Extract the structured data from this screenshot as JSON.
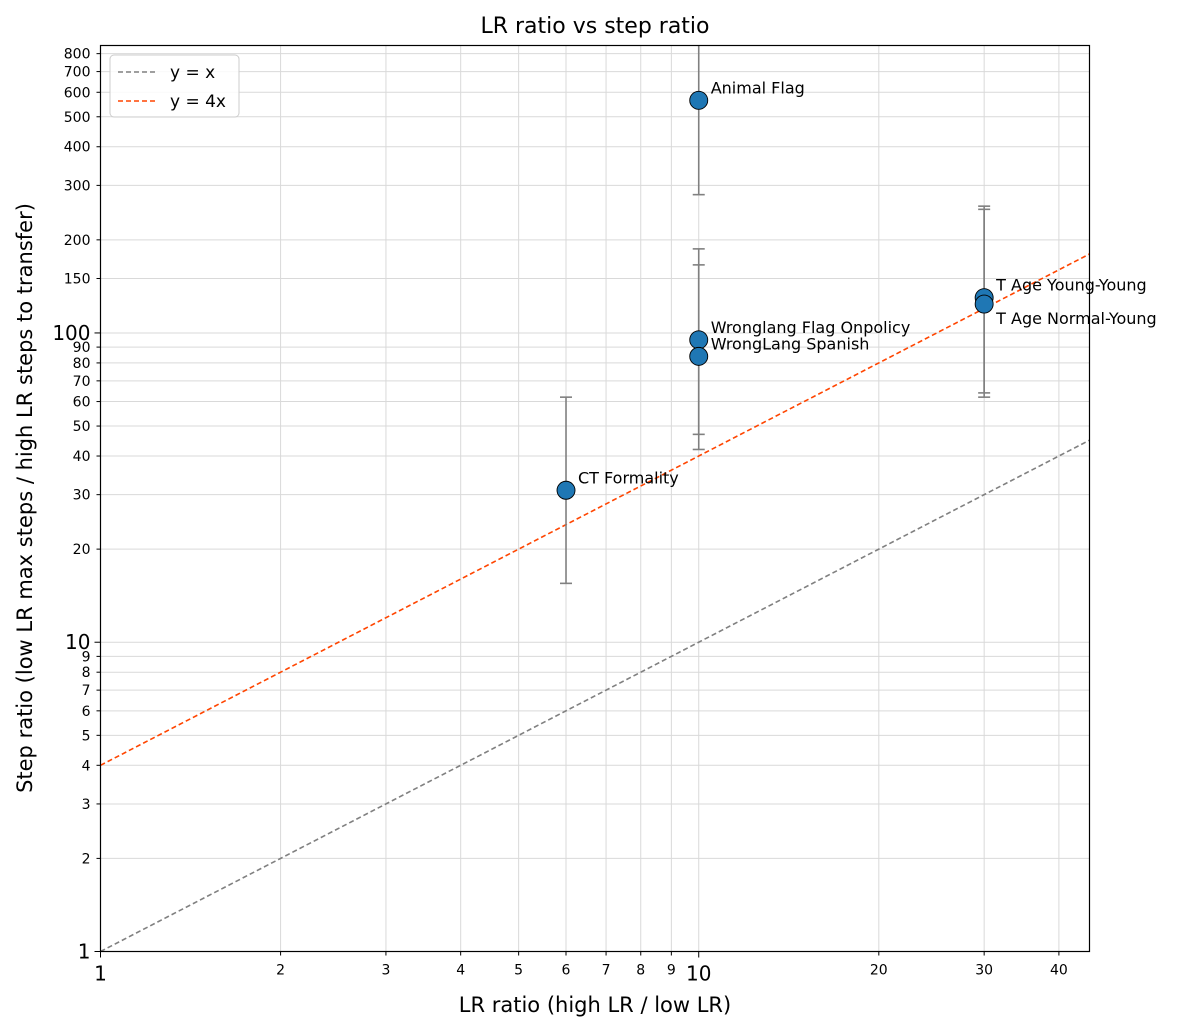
{
  "chart_data": {
    "type": "scatter",
    "title": "LR ratio vs step ratio",
    "xlabel": "LR ratio (high LR / low LR)",
    "ylabel": "Step ratio (low LR max steps / high LR steps to transfer)",
    "xscale": "log",
    "yscale": "log",
    "xlim": [
      1,
      45
    ],
    "ylim": [
      1,
      850
    ],
    "grid": true,
    "legend_position": "top-left",
    "x_ticks": [
      {
        "v": 1,
        "label": "1",
        "major": true
      },
      {
        "v": 2,
        "label": "2",
        "major": false
      },
      {
        "v": 3,
        "label": "3",
        "major": false
      },
      {
        "v": 4,
        "label": "4",
        "major": false
      },
      {
        "v": 5,
        "label": "5",
        "major": false
      },
      {
        "v": 6,
        "label": "6",
        "major": false
      },
      {
        "v": 7,
        "label": "7",
        "major": false
      },
      {
        "v": 8,
        "label": "8",
        "major": false
      },
      {
        "v": 9,
        "label": "9",
        "major": false
      },
      {
        "v": 10,
        "label": "10",
        "major": true
      },
      {
        "v": 20,
        "label": "20",
        "major": false
      },
      {
        "v": 30,
        "label": "30",
        "major": false
      },
      {
        "v": 40,
        "label": "40",
        "major": false
      }
    ],
    "y_ticks": [
      {
        "v": 1,
        "label": "1",
        "major": true
      },
      {
        "v": 2,
        "label": "2",
        "major": false
      },
      {
        "v": 3,
        "label": "3",
        "major": false
      },
      {
        "v": 4,
        "label": "4",
        "major": false
      },
      {
        "v": 5,
        "label": "5",
        "major": false
      },
      {
        "v": 6,
        "label": "6",
        "major": false
      },
      {
        "v": 7,
        "label": "7",
        "major": false
      },
      {
        "v": 8,
        "label": "8",
        "major": false
      },
      {
        "v": 9,
        "label": "9",
        "major": false
      },
      {
        "v": 10,
        "label": "10",
        "major": true
      },
      {
        "v": 20,
        "label": "20",
        "major": false
      },
      {
        "v": 30,
        "label": "30",
        "major": false
      },
      {
        "v": 40,
        "label": "40",
        "major": false
      },
      {
        "v": 50,
        "label": "50",
        "major": false
      },
      {
        "v": 60,
        "label": "60",
        "major": false
      },
      {
        "v": 70,
        "label": "70",
        "major": false
      },
      {
        "v": 80,
        "label": "80",
        "major": false
      },
      {
        "v": 90,
        "label": "90",
        "major": false
      },
      {
        "v": 100,
        "label": "100",
        "major": true
      },
      {
        "v": 150,
        "label": "150",
        "major": false
      },
      {
        "v": 200,
        "label": "200",
        "major": false
      },
      {
        "v": 300,
        "label": "300",
        "major": false
      },
      {
        "v": 400,
        "label": "400",
        "major": false
      },
      {
        "v": 500,
        "label": "500",
        "major": false
      },
      {
        "v": 600,
        "label": "600",
        "major": false
      },
      {
        "v": 700,
        "label": "700",
        "major": false
      },
      {
        "v": 800,
        "label": "800",
        "major": false
      }
    ],
    "reference_lines": [
      {
        "name": "y = x",
        "slope": 1,
        "color": "#808080"
      },
      {
        "name": "y = 4x",
        "slope": 4,
        "color": "#ff4500"
      }
    ],
    "points": [
      {
        "label": "Animal Flag",
        "x": 10,
        "y": 565,
        "err_low": 280,
        "err_high": 850,
        "label_pos": "upper-right"
      },
      {
        "label": "Wronglang Flag Onpolicy",
        "x": 10,
        "y": 95,
        "err_low": 47,
        "err_high": 187,
        "label_pos": "upper-right"
      },
      {
        "label": "WrongLang Spanish",
        "x": 10,
        "y": 84,
        "err_low": 42,
        "err_high": 166,
        "label_pos": "upper-right"
      },
      {
        "label": "CT Formality",
        "x": 6,
        "y": 31,
        "err_low": 15.5,
        "err_high": 62,
        "label_pos": "upper-right"
      },
      {
        "label": "T Age Young-Young",
        "x": 30,
        "y": 130,
        "err_low": 64,
        "err_high": 257,
        "label_pos": "upper-right"
      },
      {
        "label": "T Age Normal-Young",
        "x": 30,
        "y": 124,
        "err_low": 62,
        "err_high": 251,
        "label_pos": "lower-right"
      }
    ],
    "point_color": "#1f77b4",
    "errorbar_color": "#808080"
  }
}
